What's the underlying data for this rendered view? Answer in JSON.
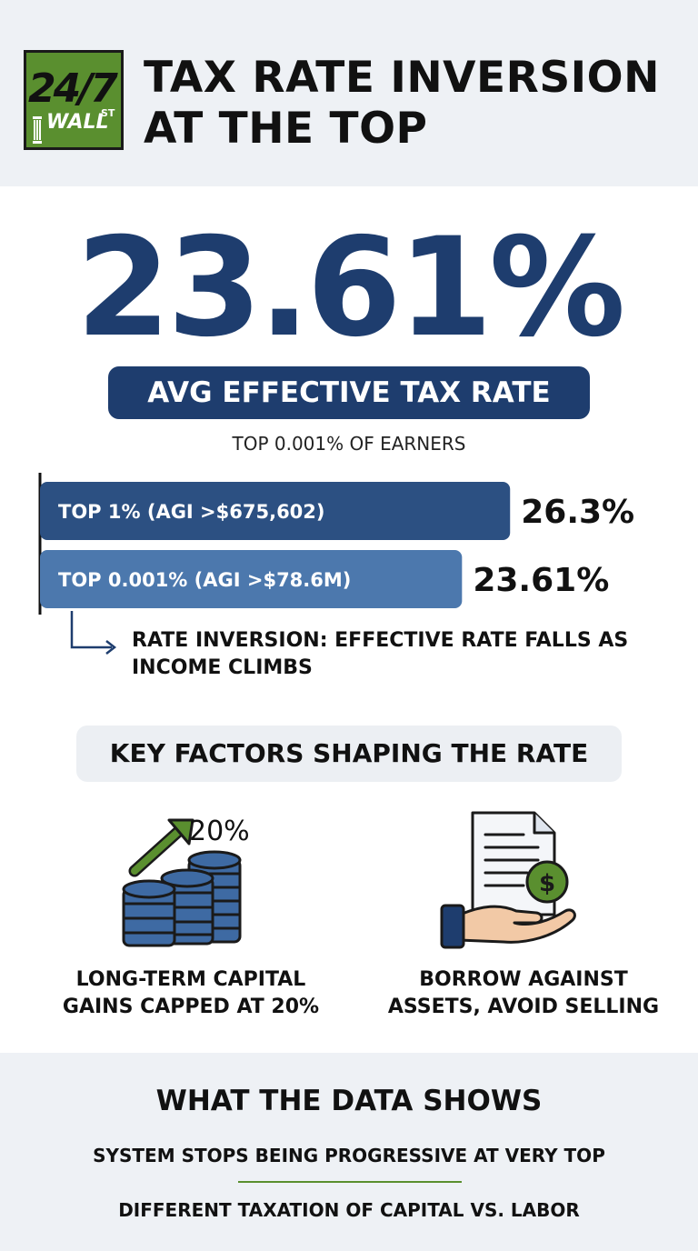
{
  "header": {
    "logo": {
      "number": "24/7",
      "wall": "WALL",
      "st": "ST"
    },
    "title_line1": "TAX RATE INVERSION",
    "title_line2": "AT THE TOP"
  },
  "hero": {
    "number": "23.61%",
    "pill_label": "AVG EFFECTIVE TAX RATE",
    "subtitle": "TOP 0.001% OF EARNERS"
  },
  "colors": {
    "navy": "#1e3d6e",
    "bar_dark": "#2c5082",
    "bar_light": "#4c78ad",
    "green": "#5a8f2f",
    "panel_gray": "#eef1f5"
  },
  "chart_data": {
    "type": "bar",
    "orientation": "horizontal",
    "categories": [
      "TOP 1% (AGI >$675,602)",
      "TOP 0.001% (AGI >$78.6M)"
    ],
    "values": [
      26.3,
      23.61
    ],
    "value_labels": [
      "26.3%",
      "23.61%"
    ],
    "colors": [
      "#2c5082",
      "#4c78ad"
    ],
    "xlim": [
      0,
      30
    ],
    "grid": false,
    "annotation": "RATE INVERSION: EFFECTIVE RATE FALLS AS INCOME CLIMBS"
  },
  "factors": {
    "section_title": "KEY FACTORS SHAPING THE RATE",
    "icon1": {
      "name": "coins-arrow-icon",
      "label": "20%"
    },
    "item1_line1": "LONG-TERM CAPITAL",
    "item1_line2": "GAINS CAPPED AT 20%",
    "icon2": {
      "name": "hand-document-dollar-icon"
    },
    "item2_line1": "BORROW AGAINST",
    "item2_line2": "ASSETS, AVOID SELLING"
  },
  "footer": {
    "title": "WHAT THE DATA SHOWS",
    "line1": "SYSTEM STOPS BEING PROGRESSIVE AT VERY TOP",
    "line2": "DIFFERENT TAXATION OF CAPITAL VS. LABOR"
  }
}
